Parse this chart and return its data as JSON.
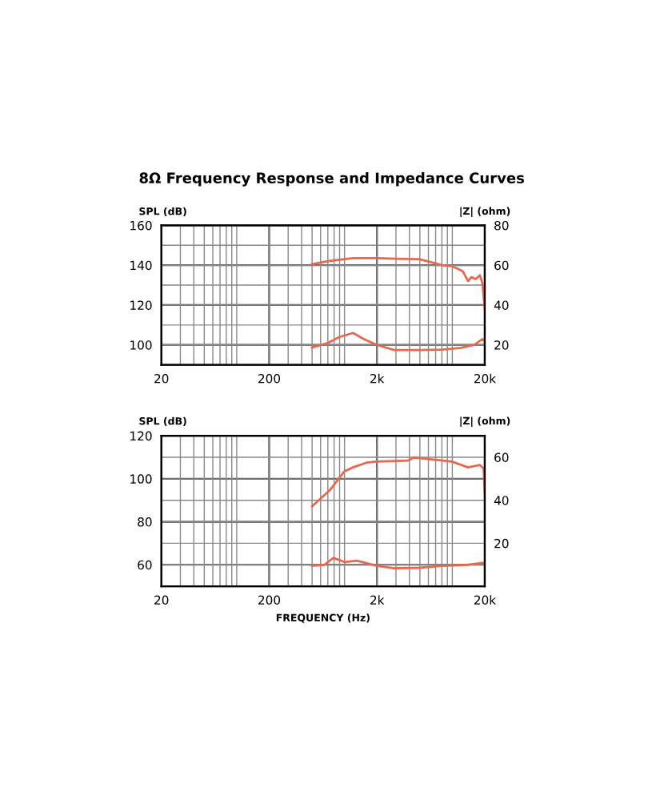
{
  "chart_data": [
    {
      "type": "line",
      "title": "8Ω Frequency Response and Impedance Curves",
      "ylabel": "SPL (dB)",
      "y2label": "|Z| (ohm)",
      "log": "x",
      "grid": true,
      "legend": false,
      "marker": "none",
      "line_style": "solid",
      "xlim": [
        20,
        20000
      ],
      "xticks": [
        {
          "value": 20,
          "label": "20"
        },
        {
          "value": 30,
          "label": null
        },
        {
          "value": 40,
          "label": null
        },
        {
          "value": 50,
          "label": null
        },
        {
          "value": 60,
          "label": null
        },
        {
          "value": 70,
          "label": null
        },
        {
          "value": 80,
          "label": null
        },
        {
          "value": 90,
          "label": null
        },
        {
          "value": 100,
          "label": null
        },
        {
          "value": 200,
          "label": "200"
        },
        {
          "value": 300,
          "label": null
        },
        {
          "value": 400,
          "label": null
        },
        {
          "value": 500,
          "label": null
        },
        {
          "value": 600,
          "label": null
        },
        {
          "value": 700,
          "label": null
        },
        {
          "value": 800,
          "label": null
        },
        {
          "value": 900,
          "label": null
        },
        {
          "value": 1000,
          "label": null
        },
        {
          "value": 2000,
          "label": "2k"
        },
        {
          "value": 3000,
          "label": null
        },
        {
          "value": 4000,
          "label": null
        },
        {
          "value": 5000,
          "label": null
        },
        {
          "value": 6000,
          "label": null
        },
        {
          "value": 7000,
          "label": null
        },
        {
          "value": 8000,
          "label": null
        },
        {
          "value": 9000,
          "label": null
        },
        {
          "value": 10000,
          "label": null
        },
        {
          "value": 20000,
          "label": "20k"
        }
      ],
      "ylim": [
        90,
        160
      ],
      "yticks": [
        100,
        {
          "value": 110,
          "label": null
        },
        120,
        {
          "value": 130,
          "label": null
        },
        140,
        {
          "value": 150,
          "label": null
        },
        160
      ],
      "y2lim": [
        10,
        80
      ],
      "y2ticks": [
        20,
        40,
        60,
        80
      ],
      "series": [
        {
          "color": "#e5694f",
          "x": [
            500,
            700,
            1000,
            1200,
            2000,
            3000,
            4900,
            6900,
            8000,
            9900,
            11000,
            12500,
            14000,
            15000,
            16500,
            18000,
            19000,
            20000
          ],
          "values": [
            140.5,
            142,
            143,
            143.5,
            143.5,
            143.2,
            143,
            141,
            140,
            139.5,
            138.5,
            137,
            132,
            134,
            133,
            135,
            131,
            118
          ]
        },
        {
          "color": "#e5694f",
          "axis": "y2",
          "x": [
            500,
            700,
            900,
            1200,
            1500,
            2000,
            2900,
            5000,
            8000,
            12000,
            16000,
            19000,
            20000
          ],
          "values": [
            18.7,
            21,
            24,
            26,
            23,
            20,
            17.4,
            17.4,
            17.6,
            18.5,
            20,
            23,
            21.5
          ]
        }
      ]
    },
    {
      "type": "line",
      "xlabel": "FREQUENCY (Hz)",
      "ylabel": "SPL (dB)",
      "y2label": "|Z| (ohm)",
      "log": "x",
      "grid": true,
      "legend": false,
      "marker": "none",
      "line_style": "solid",
      "xlim": [
        20,
        20000
      ],
      "xticks": [
        {
          "value": 20,
          "label": "20"
        },
        {
          "value": 30,
          "label": null
        },
        {
          "value": 40,
          "label": null
        },
        {
          "value": 50,
          "label": null
        },
        {
          "value": 60,
          "label": null
        },
        {
          "value": 70,
          "label": null
        },
        {
          "value": 80,
          "label": null
        },
        {
          "value": 90,
          "label": null
        },
        {
          "value": 100,
          "label": null
        },
        {
          "value": 200,
          "label": "200"
        },
        {
          "value": 300,
          "label": null
        },
        {
          "value": 400,
          "label": null
        },
        {
          "value": 500,
          "label": null
        },
        {
          "value": 600,
          "label": null
        },
        {
          "value": 700,
          "label": null
        },
        {
          "value": 800,
          "label": null
        },
        {
          "value": 900,
          "label": null
        },
        {
          "value": 1000,
          "label": null
        },
        {
          "value": 2000,
          "label": "2k"
        },
        {
          "value": 3000,
          "label": null
        },
        {
          "value": 4000,
          "label": null
        },
        {
          "value": 5000,
          "label": null
        },
        {
          "value": 6000,
          "label": null
        },
        {
          "value": 7000,
          "label": null
        },
        {
          "value": 8000,
          "label": null
        },
        {
          "value": 9000,
          "label": null
        },
        {
          "value": 10000,
          "label": null
        },
        {
          "value": 20000,
          "label": "20k"
        }
      ],
      "ylim": [
        50,
        120
      ],
      "yticks": [
        60,
        {
          "value": 70,
          "label": null
        },
        80,
        {
          "value": 90,
          "label": null
        },
        100,
        {
          "value": 110,
          "label": null
        },
        120
      ],
      "y2lim": [
        0,
        70
      ],
      "y2ticks": [
        20,
        40,
        60
      ],
      "series": [
        {
          "color": "#e5694f",
          "x": [
            500,
            730,
            1000,
            1200,
            1600,
            2000,
            3000,
            3900,
            4400,
            6900,
            9900,
            14000,
            18000,
            19500,
            20000
          ],
          "values": [
            87.2,
            94.7,
            103.5,
            105.3,
            107.5,
            108,
            108.3,
            108.5,
            109.9,
            108.8,
            108,
            105.3,
            106.4,
            104.8,
            93
          ]
        },
        {
          "color": "#e5694f",
          "axis": "y2",
          "x": [
            500,
            650,
            790,
            1000,
            1300,
            2000,
            2900,
            5000,
            8000,
            14000,
            20000
          ],
          "values": [
            9.5,
            10,
            13.2,
            11.3,
            11.9,
            9.5,
            8.4,
            8.6,
            9.5,
            10,
            11
          ]
        }
      ]
    }
  ]
}
